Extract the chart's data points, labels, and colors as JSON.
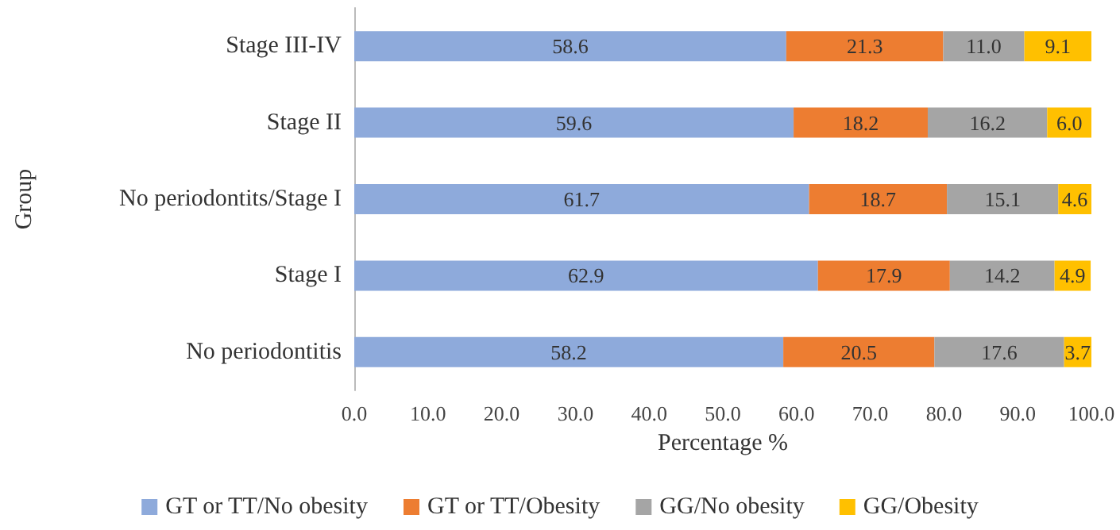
{
  "chart_data": {
    "type": "bar",
    "orientation": "horizontal",
    "stacked": true,
    "xlabel": "Percentage %",
    "ylabel": "Group",
    "categories": [
      "Stage III-IV",
      "Stage II",
      "No periodontits/Stage I",
      "Stage I",
      "No periodontitis"
    ],
    "series": [
      {
        "name": "GT or TT/No obesity",
        "color": "#8eaadb",
        "values": [
          58.6,
          59.6,
          61.7,
          62.9,
          58.2
        ],
        "value_labels": [
          "58.6",
          "59.6",
          "61.7",
          "62.9",
          "58.2"
        ]
      },
      {
        "name": "GT or TT/Obesity",
        "color": "#ed7d31",
        "values": [
          21.3,
          18.2,
          18.7,
          17.9,
          20.5
        ],
        "value_labels": [
          "21.3",
          "18.2",
          "18.7",
          "17.9",
          "20.5"
        ]
      },
      {
        "name": "GG/No obesity",
        "color": "#a5a5a5",
        "values": [
          11.0,
          16.2,
          15.1,
          14.2,
          17.6
        ],
        "value_labels": [
          "11.0",
          "16.2",
          "15.1",
          "14.2",
          "17.6"
        ]
      },
      {
        "name": "GG/Obesity",
        "color": "#ffc000",
        "values": [
          9.1,
          6.0,
          4.6,
          4.9,
          3.7
        ],
        "value_labels": [
          "9.1",
          "6.0",
          "4.6",
          "4.9",
          "3.7"
        ]
      }
    ],
    "xlim": [
      0,
      100
    ],
    "xticks": [
      {
        "value": 0,
        "label": "0.0"
      },
      {
        "value": 10,
        "label": "10.0"
      },
      {
        "value": 20,
        "label": "20.0"
      },
      {
        "value": 30,
        "label": "30.0"
      },
      {
        "value": 40,
        "label": "40.0"
      },
      {
        "value": 50,
        "label": "50.0"
      },
      {
        "value": 60,
        "label": "60.0"
      },
      {
        "value": 70,
        "label": "70.0"
      },
      {
        "value": 80,
        "label": "80.0"
      },
      {
        "value": 90,
        "label": "90.0"
      },
      {
        "value": 100,
        "label": "100.0"
      }
    ],
    "grid": false,
    "legend": "bottom"
  }
}
